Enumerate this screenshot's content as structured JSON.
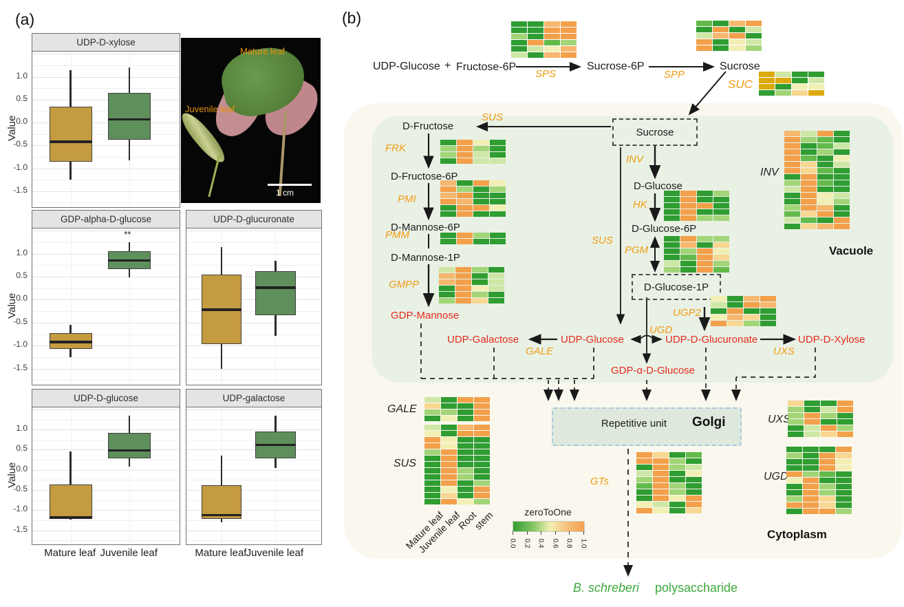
{
  "figure": {
    "panel_a_label": "(a)",
    "panel_b_label": "(b)"
  },
  "photo": {
    "mature_label": "Mature  leaf",
    "juvenile_label": "Juvenile  leaf",
    "scale_label": "1 cm"
  },
  "chart_data": {
    "type": "boxplot",
    "ylabel": "Value",
    "yticks": [
      "1.0",
      "0.5",
      "0.0",
      "-0.5",
      "-1.0",
      "-1.5"
    ],
    "ylim": [
      -1.85,
      1.55
    ],
    "groups": [
      "Mature leaf",
      "Juvenile leaf"
    ],
    "group_colors": [
      "#c49b40",
      "#5f8f5a"
    ],
    "panels": [
      {
        "title": "UDP-D-xylose",
        "significance": "",
        "series": [
          {
            "group": "Mature leaf",
            "lo": -1.25,
            "q1": -0.85,
            "med": -0.42,
            "q3": 0.35,
            "hi": 1.15
          },
          {
            "group": "Juvenile leaf",
            "lo": -0.83,
            "q1": -0.37,
            "med": 0.07,
            "q3": 0.65,
            "hi": 1.2
          }
        ]
      },
      {
        "title": "GDP-alpha-D-glucose",
        "significance": "**",
        "series": [
          {
            "group": "Mature leaf",
            "lo": -1.25,
            "q1": -1.07,
            "med": -0.92,
            "q3": -0.73,
            "hi": -0.55
          },
          {
            "group": "Juvenile leaf",
            "lo": 0.48,
            "q1": 0.67,
            "med": 0.85,
            "q3": 1.05,
            "hi": 1.25
          }
        ]
      },
      {
        "title": "UDP-D-glucuronate",
        "significance": "",
        "series": [
          {
            "group": "Mature leaf",
            "lo": -1.5,
            "q1": -0.97,
            "med": -0.22,
            "q3": 0.55,
            "hi": 1.15
          },
          {
            "group": "Juvenile leaf",
            "lo": -0.78,
            "q1": -0.33,
            "med": 0.26,
            "q3": 0.62,
            "hi": 0.85
          }
        ]
      },
      {
        "title": "UDP-D-glucose",
        "significance": "",
        "series": [
          {
            "group": "Mature leaf",
            "lo": -1.24,
            "q1": -1.22,
            "med": -1.18,
            "q3": -0.37,
            "hi": 0.45
          },
          {
            "group": "Juvenile leaf",
            "lo": 0.08,
            "q1": 0.28,
            "med": 0.48,
            "q3": 0.92,
            "hi": 1.35
          }
        ]
      },
      {
        "title": "UDP-galactose",
        "significance": "",
        "series": [
          {
            "group": "Mature leaf",
            "lo": -1.3,
            "q1": -1.22,
            "med": -1.12,
            "q3": -0.38,
            "hi": 0.35
          },
          {
            "group": "Juvenile leaf",
            "lo": 0.05,
            "q1": 0.28,
            "med": 0.62,
            "q3": 0.95,
            "hi": 1.35
          }
        ]
      }
    ]
  },
  "panel_b": {
    "labels": {
      "eq_udp_glucose": "UDP-Glucose",
      "eq_plus": "+",
      "eq_fructose_6p": "Fructose-6P",
      "sps": "SPS",
      "sucrose_6p": "Sucrose-6P",
      "spp": "SPP",
      "sucrose": "Sucrose",
      "suc": "SUC",
      "sus_top": "SUS",
      "d_fructose": "D-Fructose",
      "frk": "FRK",
      "d_fructose_6p": "D-Fructose-6P",
      "pmi": "PMI",
      "d_mannose_6p": "D-Mannose-6P",
      "pmm": "PMM",
      "d_mannose_1p": "D-Mannose-1P",
      "gmpp": "GMPP",
      "gdp_mannose": "GDP-Mannose",
      "sucrose_box": "Sucrose",
      "inv": "INV",
      "d_glucose": "D-Glucose",
      "hk": "HK",
      "d_glucose_6p": "D-Glucose-6P",
      "pgm": "PGM",
      "sus_mid": "SUS",
      "d_glucose_1p": "D-Glucose-1P",
      "ugp2": "UGP2",
      "ugd": "UGD",
      "udp_galactose": "UDP-Galactose",
      "gale": "GALE",
      "udp_glucose": "UDP-Glucose",
      "udp_d_glucuronate": "UDP-D-Glucuronate",
      "uxs": "UXS",
      "udp_d_xylose": "UDP-D-Xylose",
      "gdp_a_d_glucose": "GDP-α-D-Glucose",
      "inv_heat": "INV",
      "gale_heat": "GALE",
      "sus_heat": "SUS",
      "gts": "GTs",
      "uxs_heat": "UXS",
      "ugd_heat": "UGD",
      "b_schreberi": "B. schreberi",
      "polysaccharide": "polysaccharide"
    },
    "compartments": {
      "vacuole": "Vacuole",
      "golgi": "Golgi",
      "repetitive_unit": "Repetitive unit",
      "cytoplasm": "Cytoplasm"
    },
    "legend": {
      "title": "zeroToOne",
      "ticks": [
        "0.0",
        "0.2",
        "0.4",
        "0.6",
        "0.8",
        "1.0"
      ]
    },
    "heatmap_axis_labels": [
      "Mature leaf",
      "Juvenile leaf",
      "Root",
      "stem"
    ],
    "colors": {
      "enzyme_orange": "#f09c13",
      "metabolite_red": "#e5291e",
      "product_green": "#3ba83b"
    },
    "palette": {
      "G": "#2f9d32",
      "g": "#63ba4b",
      "l": "#a2d478",
      "p": "#cfe7a6",
      "y": "#f2efb4",
      "k": "#f8d793",
      "o": "#f6b76e",
      "O": "#f3a04b",
      "d": "#dcaa10"
    },
    "heatmaps": {
      "SPS": {
        "rows": [
          "GGoO",
          "GGOO",
          "lGOO",
          "GOgl",
          "Gpyo",
          "pGoO"
        ]
      },
      "SPP": {
        "rows": [
          "gGoO",
          "GOGp",
          "poOG",
          "OGyp",
          "OGyl"
        ]
      },
      "SUC": {
        "rows": [
          "dpGG",
          "ddGp",
          "dGyy",
          "Glkd"
        ]
      },
      "FRK": {
        "rows": [
          "GOyG",
          "lOlG",
          "lOpG",
          "GOpp"
        ]
      },
      "PMI": {
        "rows": [
          "oGOy",
          "OlGl",
          "oOGG",
          "OoGG",
          "GOOy",
          "GOGG"
        ]
      },
      "PMM": {
        "rows": [
          "GOlG",
          "GOGG"
        ]
      },
      "GMPP": {
        "rows": [
          "pOlG",
          "oOGp",
          "oOGp",
          "GOyp",
          "GOlG",
          "lOkG"
        ]
      },
      "HK": {
        "rows": [
          "GOGl",
          "GOGG",
          "GOOG",
          "GOGG",
          "GOll"
        ]
      },
      "PGM": {
        "rows": [
          "GOll",
          "GoGk",
          "GlOy",
          "GgOk",
          "pGOl",
          "lGOg"
        ]
      },
      "UGP2": {
        "rows": [
          "yGoO",
          "pGOo",
          "GOGG",
          "yokG",
          "OklG"
        ]
      },
      "INV": {
        "rows": [
          "opOG",
          "OlgG",
          "OGgp",
          "OGlG",
          "OgGy",
          "OkGp",
          "OkgG",
          "GOGG",
          "lOgG",
          "pOGG",
          "GOyp",
          "GOyl",
          "lOoG",
          "gkOG",
          "pgGO",
          "GkoO"
        ]
      },
      "GALEb": {
        "rows": [
          "pGOO",
          "kGGO",
          "llGO",
          "GyGO"
        ]
      },
      "SUSb": {
        "rows": [
          "pGoO",
          "yGOO",
          "OyGG",
          "OyGG",
          "lOGG",
          "GOGG",
          "GOGG",
          "GOlG",
          "GOlG",
          "GOGl",
          "GyGO",
          "GkGO",
          "GOyl"
        ]
      },
      "GTs": {
        "rows": [
          "OkGg",
          "OOlG",
          "GOlp",
          "pOGy",
          "lOGG",
          "gOlG",
          "GOlG",
          "GOyO",
          "ypGO",
          "OyGk"
        ]
      },
      "UXSb": {
        "rows": [
          "kGGO",
          "lGpO",
          "lOlG",
          "lOGG",
          "GpOl",
          "GpkO"
        ]
      },
      "UGDb": {
        "rows": [
          "GGGO",
          "lGOk",
          "GGOy",
          "GGOy",
          "OlgG",
          "yOGG",
          "GOlG",
          "GOlG",
          "lOkG",
          "OOkG",
          "GOOl"
        ]
      }
    }
  }
}
